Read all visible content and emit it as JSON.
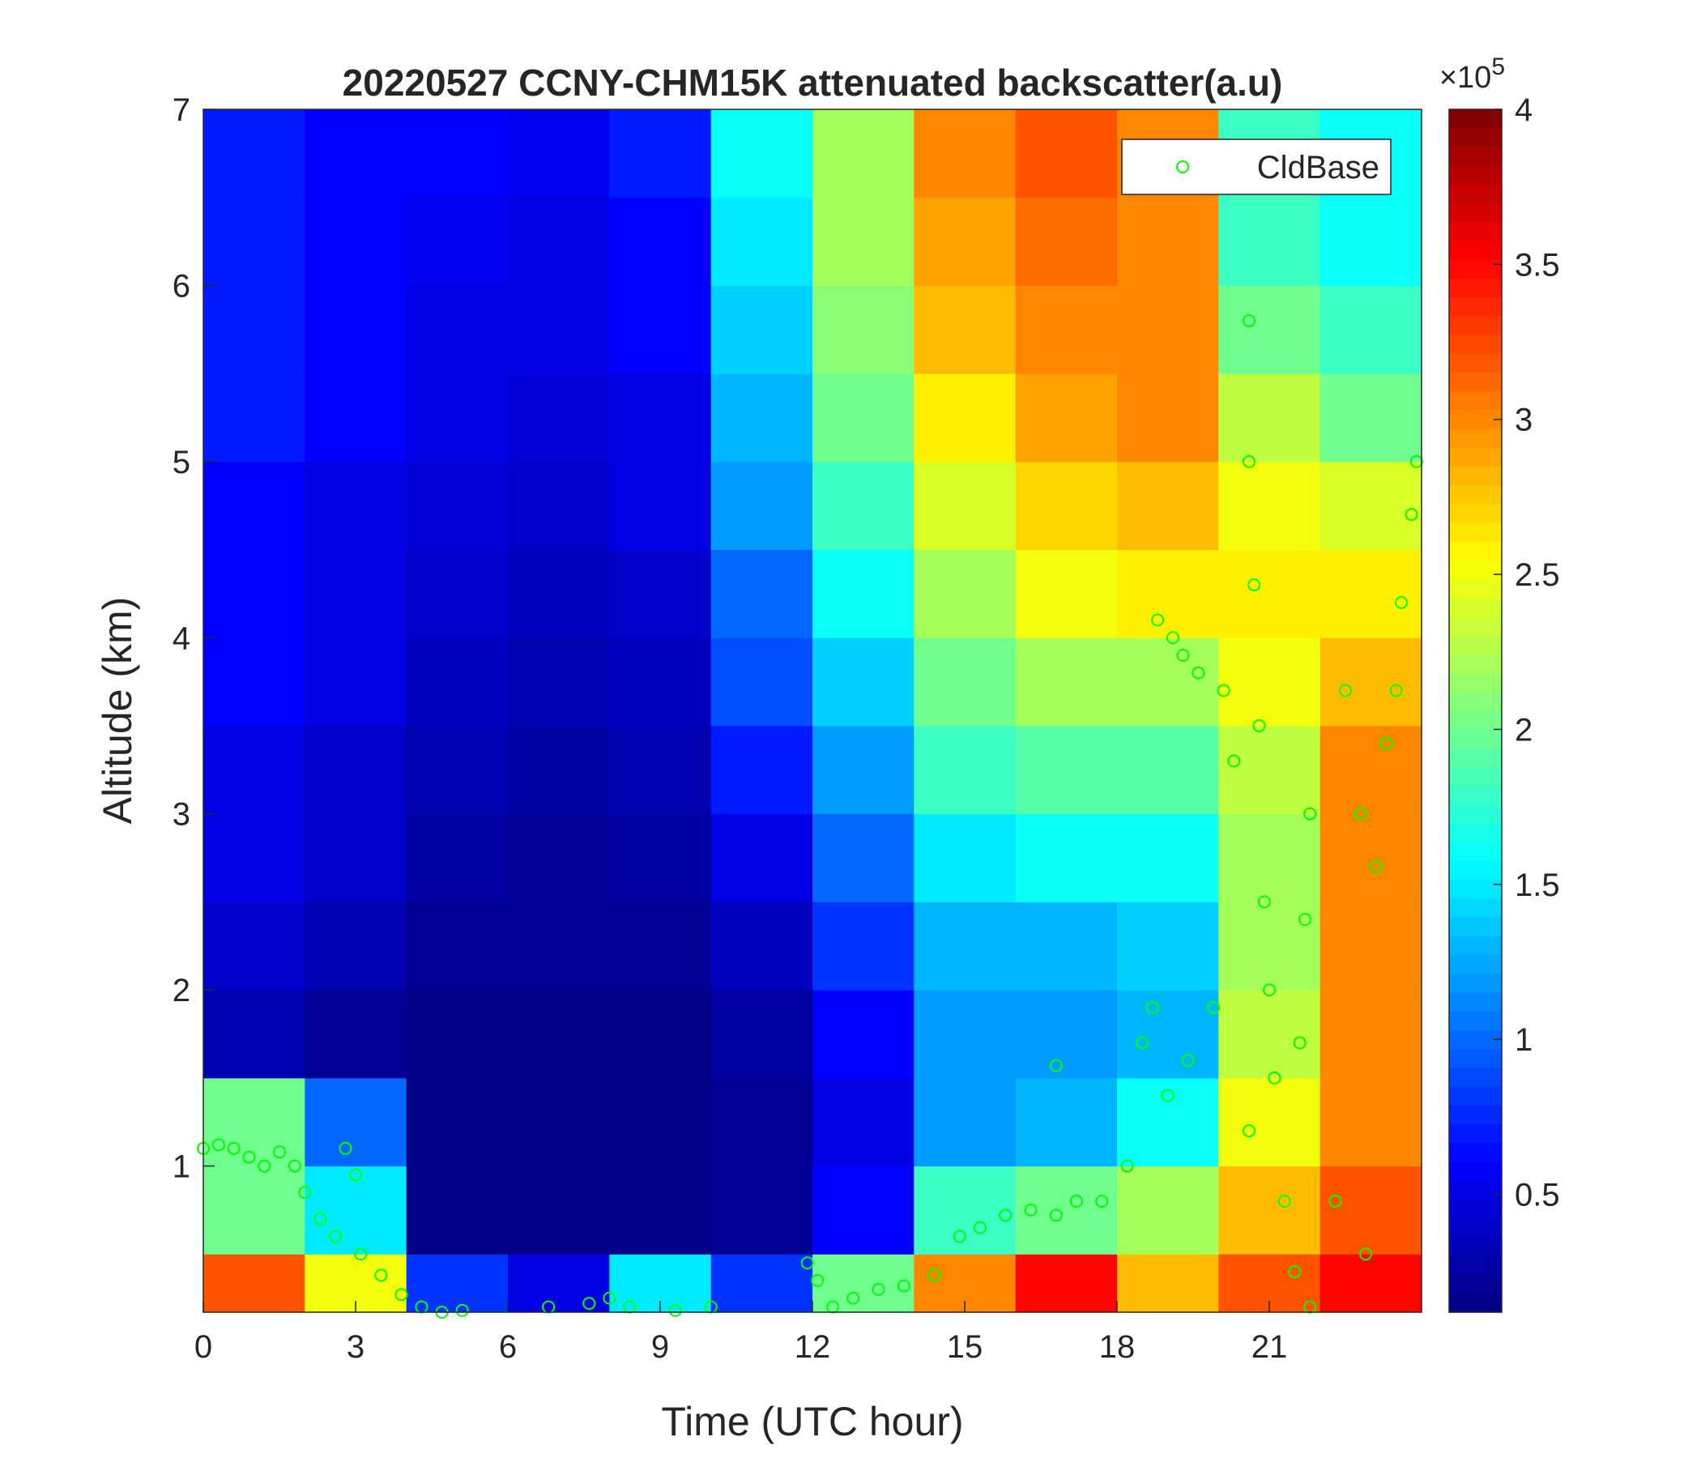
{
  "chart_data": {
    "type": "heatmap",
    "title": "20220527 CCNY-CHM15K attenuated backscatter(a.u)",
    "x_label": "Time (UTC hour)",
    "y_label": "Altitude (km)",
    "xlim": [
      0,
      24
    ],
    "ylim": [
      0.17,
      7
    ],
    "xticks": [
      0,
      3,
      6,
      9,
      12,
      15,
      18,
      21
    ],
    "yticks": [
      1,
      2,
      3,
      4,
      5,
      6,
      7
    ],
    "colormap": "jet",
    "clim": [
      0.12,
      4
    ],
    "cticks": [
      0.5,
      1,
      1.5,
      2,
      2.5,
      3,
      3.5,
      4
    ],
    "colorbar_multiplier": {
      "base": "×10",
      "exponent": "5"
    },
    "x_edges": [
      0,
      2,
      4,
      6,
      8,
      10,
      12,
      14,
      16,
      18,
      20,
      22,
      24
    ],
    "y_edges": [
      0.17,
      0.5,
      1,
      1.5,
      2,
      2.5,
      3,
      3.5,
      4,
      4.5,
      5,
      5.5,
      6,
      6.5,
      7
    ],
    "z": [
      [
        3.2,
        2.0,
        2.0,
        0.3,
        0.4,
        0.5,
        0.5,
        0.6,
        0.6,
        0.6,
        0.7,
        0.7,
        0.7,
        0.7
      ],
      [
        2.5,
        1.5,
        1.0,
        0.2,
        0.3,
        0.4,
        0.4,
        0.5,
        0.5,
        0.5,
        0.6,
        0.6,
        0.6,
        0.6
      ],
      [
        0.8,
        0.15,
        0.15,
        0.15,
        0.2,
        0.25,
        0.3,
        0.35,
        0.4,
        0.45,
        0.5,
        0.5,
        0.55,
        0.6
      ],
      [
        0.5,
        0.15,
        0.15,
        0.15,
        0.2,
        0.2,
        0.25,
        0.3,
        0.35,
        0.4,
        0.45,
        0.5,
        0.5,
        0.55
      ],
      [
        1.5,
        0.15,
        0.15,
        0.15,
        0.2,
        0.25,
        0.3,
        0.35,
        0.4,
        0.5,
        0.5,
        0.6,
        0.6,
        0.7
      ],
      [
        0.8,
        0.2,
        0.2,
        0.25,
        0.35,
        0.5,
        0.7,
        0.9,
        1.0,
        1.2,
        1.3,
        1.4,
        1.5,
        1.6
      ],
      [
        2.0,
        0.6,
        0.5,
        0.6,
        0.8,
        1.0,
        1.2,
        1.4,
        1.6,
        1.8,
        2.0,
        2.1,
        2.2,
        2.2
      ],
      [
        3.0,
        1.8,
        1.2,
        1.2,
        1.3,
        1.5,
        1.8,
        2.0,
        2.2,
        2.4,
        2.6,
        2.8,
        2.9,
        3.0
      ],
      [
        3.5,
        2.0,
        1.3,
        1.2,
        1.3,
        1.6,
        1.9,
        2.2,
        2.5,
        2.7,
        2.9,
        3.0,
        3.1,
        3.2
      ],
      [
        2.8,
        2.2,
        1.6,
        1.3,
        1.4,
        1.6,
        1.9,
        2.2,
        2.6,
        2.8,
        3.0,
        3.0,
        3.0,
        3.0
      ],
      [
        3.2,
        2.8,
        2.5,
        2.3,
        2.2,
        2.2,
        2.3,
        2.5,
        2.6,
        2.5,
        2.3,
        2.0,
        1.8,
        1.8
      ],
      [
        3.5,
        3.2,
        3.0,
        3.0,
        3.0,
        3.0,
        3.0,
        2.8,
        2.6,
        2.4,
        2.0,
        1.8,
        1.6,
        1.6
      ]
    ],
    "series": [
      {
        "name": "CldBase",
        "color": "#00ff00",
        "x": [
          0,
          0.3,
          0.6,
          0.9,
          1.2,
          1.5,
          1.8,
          2.0,
          2.3,
          2.6,
          2.8,
          3.0,
          3.1,
          3.5,
          3.9,
          4.3,
          4.7,
          5.1,
          6.8,
          7.6,
          8.0,
          8.4,
          9.3,
          10.0,
          11.9,
          12.1,
          12.4,
          12.8,
          13.3,
          13.8,
          14.4,
          14.9,
          15.3,
          15.8,
          16.3,
          16.8,
          17.2,
          17.7,
          16.8,
          18.2,
          18.5,
          18.7,
          18.8,
          19.1,
          19.3,
          19.6,
          19.0,
          19.4,
          19.9,
          20.1,
          20.3,
          20.6,
          20.6,
          20.7,
          20.8,
          20.9,
          20.6,
          21.0,
          21.1,
          21.3,
          21.5,
          21.8,
          21.6,
          21.7,
          21.8,
          22.3,
          22.5,
          22.8,
          22.9,
          23.1,
          23.3,
          23.5,
          23.6,
          23.8,
          23.9
        ],
        "values": [
          1.1,
          1.12,
          1.1,
          1.05,
          1.0,
          1.08,
          1.0,
          0.85,
          0.7,
          0.6,
          1.1,
          0.95,
          0.5,
          0.38,
          0.27,
          0.2,
          0.17,
          0.18,
          0.2,
          0.22,
          0.25,
          0.2,
          0.18,
          0.2,
          0.45,
          0.35,
          0.2,
          0.25,
          0.3,
          0.32,
          0.38,
          0.6,
          0.65,
          0.72,
          0.75,
          0.72,
          0.8,
          0.8,
          1.57,
          1.0,
          1.7,
          1.9,
          4.1,
          4.0,
          3.9,
          3.8,
          1.4,
          1.6,
          1.9,
          3.7,
          3.3,
          5.8,
          5.0,
          4.3,
          3.5,
          2.5,
          1.2,
          2.0,
          1.5,
          0.8,
          0.4,
          0.2,
          1.7,
          2.4,
          3.0,
          0.8,
          3.7,
          3.0,
          0.5,
          2.7,
          3.4,
          3.7,
          4.2,
          4.7,
          5.0
        ]
      }
    ],
    "legend": "northeast"
  }
}
